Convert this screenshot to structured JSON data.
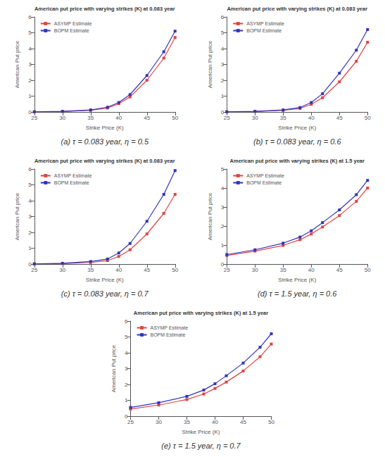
{
  "chart_data": [
    {
      "type": "line",
      "title": "American put price with varying strikes (K) at 0.083 year",
      "xlabel": "Strike Price (K)",
      "ylabel": "American Put price",
      "annotations": [
        "(a) τ = 0.083 year, η = 0.5"
      ],
      "x": [
        25,
        30,
        35,
        38,
        40,
        42,
        45,
        48,
        50
      ],
      "xlim": [
        25,
        50
      ],
      "xticks": [
        25,
        30,
        35,
        40,
        45,
        50
      ],
      "ylim": [
        0,
        6
      ],
      "yticks": [
        0,
        1,
        2,
        3,
        4,
        5,
        6
      ],
      "grid": false,
      "legend": "upper left",
      "series": [
        {
          "name": "ASYMP Estimate",
          "color": "#dd4444",
          "marker": "square",
          "values": [
            0.01,
            0.03,
            0.1,
            0.25,
            0.52,
            0.95,
            2.0,
            3.4,
            4.7
          ]
        },
        {
          "name": "BOPM Estimate",
          "color": "#3333bb",
          "marker": "square",
          "values": [
            0.01,
            0.04,
            0.13,
            0.3,
            0.6,
            1.1,
            2.3,
            3.8,
            5.1
          ]
        }
      ]
    },
    {
      "type": "line",
      "title": "American put price with varying strikes (K) at 0.083 year",
      "xlabel": "Strike Price (K)",
      "ylabel": "American Put price",
      "annotations": [
        "(b) τ = 0.083 year, η = 0.6"
      ],
      "x": [
        25,
        30,
        35,
        38,
        40,
        42,
        45,
        48,
        50
      ],
      "xlim": [
        25,
        50
      ],
      "xticks": [
        25,
        30,
        35,
        40,
        45,
        50
      ],
      "ylim": [
        0,
        6
      ],
      "yticks": [
        0,
        1,
        2,
        3,
        4,
        5,
        6
      ],
      "grid": false,
      "legend": "upper left",
      "series": [
        {
          "name": "ASYMP Estimate",
          "color": "#dd4444",
          "marker": "square",
          "values": [
            0.01,
            0.03,
            0.1,
            0.22,
            0.48,
            0.9,
            1.9,
            3.2,
            4.4
          ]
        },
        {
          "name": "BOPM Estimate",
          "color": "#3333bb",
          "marker": "square",
          "values": [
            0.01,
            0.04,
            0.13,
            0.28,
            0.6,
            1.15,
            2.45,
            3.9,
            5.2
          ]
        }
      ]
    },
    {
      "type": "line",
      "title": "American put price with varying strikes (K) at 0.083 year",
      "xlabel": "Strike Price (K)",
      "ylabel": "American Put price",
      "annotations": [
        "(c) τ = 0.083 year, η = 0.7"
      ],
      "x": [
        25,
        30,
        35,
        38,
        40,
        42,
        45,
        48,
        50
      ],
      "xlim": [
        25,
        50
      ],
      "xticks": [
        25,
        30,
        35,
        40,
        45,
        50
      ],
      "ylim": [
        0,
        6
      ],
      "yticks": [
        0,
        1,
        2,
        3,
        4,
        5,
        6
      ],
      "grid": false,
      "legend": "upper left",
      "series": [
        {
          "name": "ASYMP Estimate",
          "color": "#dd4444",
          "marker": "square",
          "values": [
            0.01,
            0.03,
            0.1,
            0.22,
            0.48,
            0.9,
            1.9,
            3.2,
            4.4
          ]
        },
        {
          "name": "BOPM Estimate",
          "color": "#3333bb",
          "marker": "square",
          "values": [
            0.01,
            0.05,
            0.16,
            0.32,
            0.7,
            1.3,
            2.7,
            4.4,
            5.9
          ]
        }
      ]
    },
    {
      "type": "line",
      "title": "American put price with varying strikes (K) at 1.5 year",
      "xlabel": "Strike Price (K)",
      "ylabel": "American Put price",
      "annotations": [
        "(d) τ = 1.5 year, η = 0.6"
      ],
      "x": [
        25,
        30,
        35,
        38,
        40,
        42,
        45,
        48,
        50
      ],
      "xlim": [
        25,
        50
      ],
      "xticks": [
        25,
        30,
        35,
        40,
        45,
        50
      ],
      "ylim": [
        0,
        5
      ],
      "yticks": [
        0,
        1,
        2,
        3,
        4,
        5
      ],
      "grid": false,
      "legend": "upper left",
      "series": [
        {
          "name": "ASYMP Estimate",
          "color": "#dd4444",
          "marker": "square",
          "values": [
            0.45,
            0.68,
            0.98,
            1.28,
            1.58,
            1.95,
            2.55,
            3.3,
            4.0
          ]
        },
        {
          "name": "BOPM Estimate",
          "color": "#3333bb",
          "marker": "square",
          "values": [
            0.5,
            0.75,
            1.1,
            1.42,
            1.75,
            2.18,
            2.85,
            3.65,
            4.4
          ]
        }
      ]
    },
    {
      "type": "line",
      "title": "American put price with varying strikes (K) at 1.5 year",
      "xlabel": "Strike Price (K)",
      "ylabel": "American Put price",
      "annotations": [
        "(e) τ = 1.5 year, η = 0.7"
      ],
      "x": [
        25,
        30,
        35,
        38,
        40,
        42,
        45,
        48,
        50
      ],
      "xlim": [
        25,
        50
      ],
      "xticks": [
        25,
        30,
        35,
        40,
        45,
        50
      ],
      "ylim": [
        0,
        6
      ],
      "yticks": [
        0,
        1,
        2,
        3,
        4,
        5,
        6
      ],
      "grid": false,
      "legend": "upper left",
      "series": [
        {
          "name": "ASYMP Estimate",
          "color": "#dd4444",
          "marker": "square",
          "values": [
            0.45,
            0.7,
            1.05,
            1.4,
            1.75,
            2.15,
            2.85,
            3.75,
            4.55
          ]
        },
        {
          "name": "BOPM Estimate",
          "color": "#3333bb",
          "marker": "square",
          "values": [
            0.55,
            0.85,
            1.25,
            1.65,
            2.05,
            2.55,
            3.35,
            4.35,
            5.2
          ]
        }
      ]
    }
  ]
}
